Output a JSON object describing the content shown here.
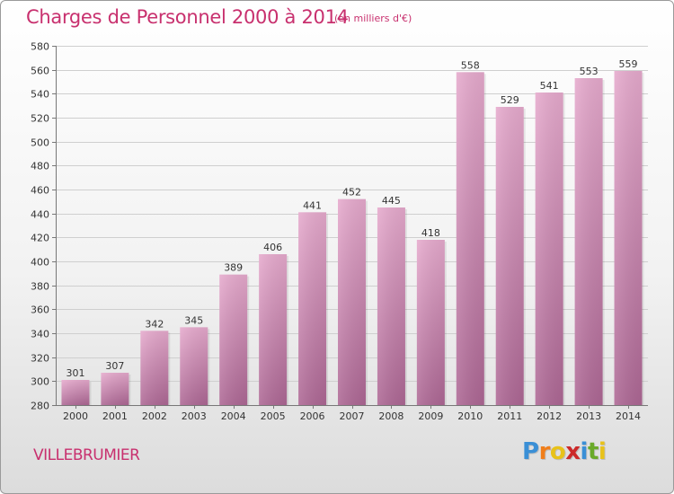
{
  "title": "Charges de Personnel 2000 à 2014",
  "subtitle": "(en milliers d'€)",
  "commune": "VILLEBRUMIER",
  "logo": {
    "letters": [
      "P",
      "r",
      "o",
      "x",
      "i",
      "t",
      "i"
    ],
    "colors": [
      "#3a8fd6",
      "#f07e1a",
      "#e8c21a",
      "#cc2a2a",
      "#3a8fd6",
      "#6aaa2a",
      "#e8c21a"
    ]
  },
  "colors": {
    "accent": "#c8306e",
    "bar_top": "#e4a6ca",
    "bar_bottom": "#b06a96"
  },
  "chart_data": {
    "type": "bar",
    "title": "Charges de Personnel 2000 à 2014",
    "subtitle": "(en milliers d'€)",
    "categories": [
      "2000",
      "2001",
      "2002",
      "2003",
      "2004",
      "2005",
      "2006",
      "2007",
      "2008",
      "2009",
      "2010",
      "2011",
      "2012",
      "2013",
      "2014"
    ],
    "values": [
      301,
      307,
      342,
      345,
      389,
      406,
      441,
      452,
      445,
      418,
      558,
      529,
      541,
      553,
      559
    ],
    "ylim": [
      280,
      580
    ],
    "yticks": [
      280,
      300,
      320,
      340,
      360,
      380,
      400,
      420,
      440,
      460,
      480,
      500,
      520,
      540,
      560,
      580
    ],
    "grid": true,
    "xlabel": "",
    "ylabel": ""
  }
}
